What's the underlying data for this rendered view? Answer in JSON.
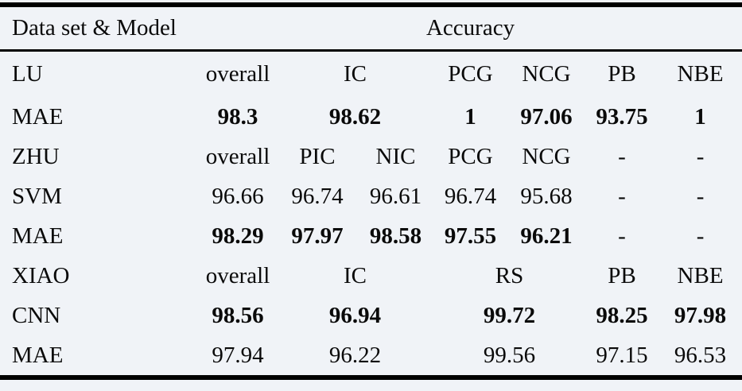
{
  "page": {
    "background_color": "#f0f3f7",
    "rule_color": "#000000"
  },
  "table": {
    "header": {
      "dataset_model": "Data set & Model",
      "accuracy": "Accuracy"
    },
    "rows": [
      {
        "name": "lu-header",
        "cells": [
          "LU",
          "overall",
          "IC",
          "PCG",
          "NCG",
          "PB",
          "NBE"
        ]
      },
      {
        "name": "lu-mae",
        "cells": [
          "MAE",
          "98.3",
          "98.62",
          "1",
          "97.06",
          "93.75",
          "1"
        ]
      },
      {
        "name": "zhu-header",
        "cells": [
          "ZHU",
          "overall",
          "PIC",
          "NIC",
          "PCG",
          "NCG",
          "-",
          "-"
        ]
      },
      {
        "name": "zhu-svm",
        "cells": [
          "SVM",
          "96.66",
          "96.74",
          "96.61",
          "96.74",
          "95.68",
          "-",
          "-"
        ]
      },
      {
        "name": "zhu-mae",
        "cells": [
          "MAE",
          "98.29",
          "97.97",
          "98.58",
          "97.55",
          "96.21",
          "-",
          "-"
        ]
      },
      {
        "name": "xiao-header",
        "cells": [
          "XIAO",
          "overall",
          "IC",
          "RS",
          "PB",
          "NBE"
        ]
      },
      {
        "name": "xiao-cnn",
        "cells": [
          "CNN",
          "98.56",
          "96.94",
          "99.72",
          "98.25",
          "97.98"
        ]
      },
      {
        "name": "xiao-mae",
        "cells": [
          "MAE",
          "97.94",
          "96.22",
          "99.56",
          "97.15",
          "96.53"
        ]
      }
    ]
  }
}
